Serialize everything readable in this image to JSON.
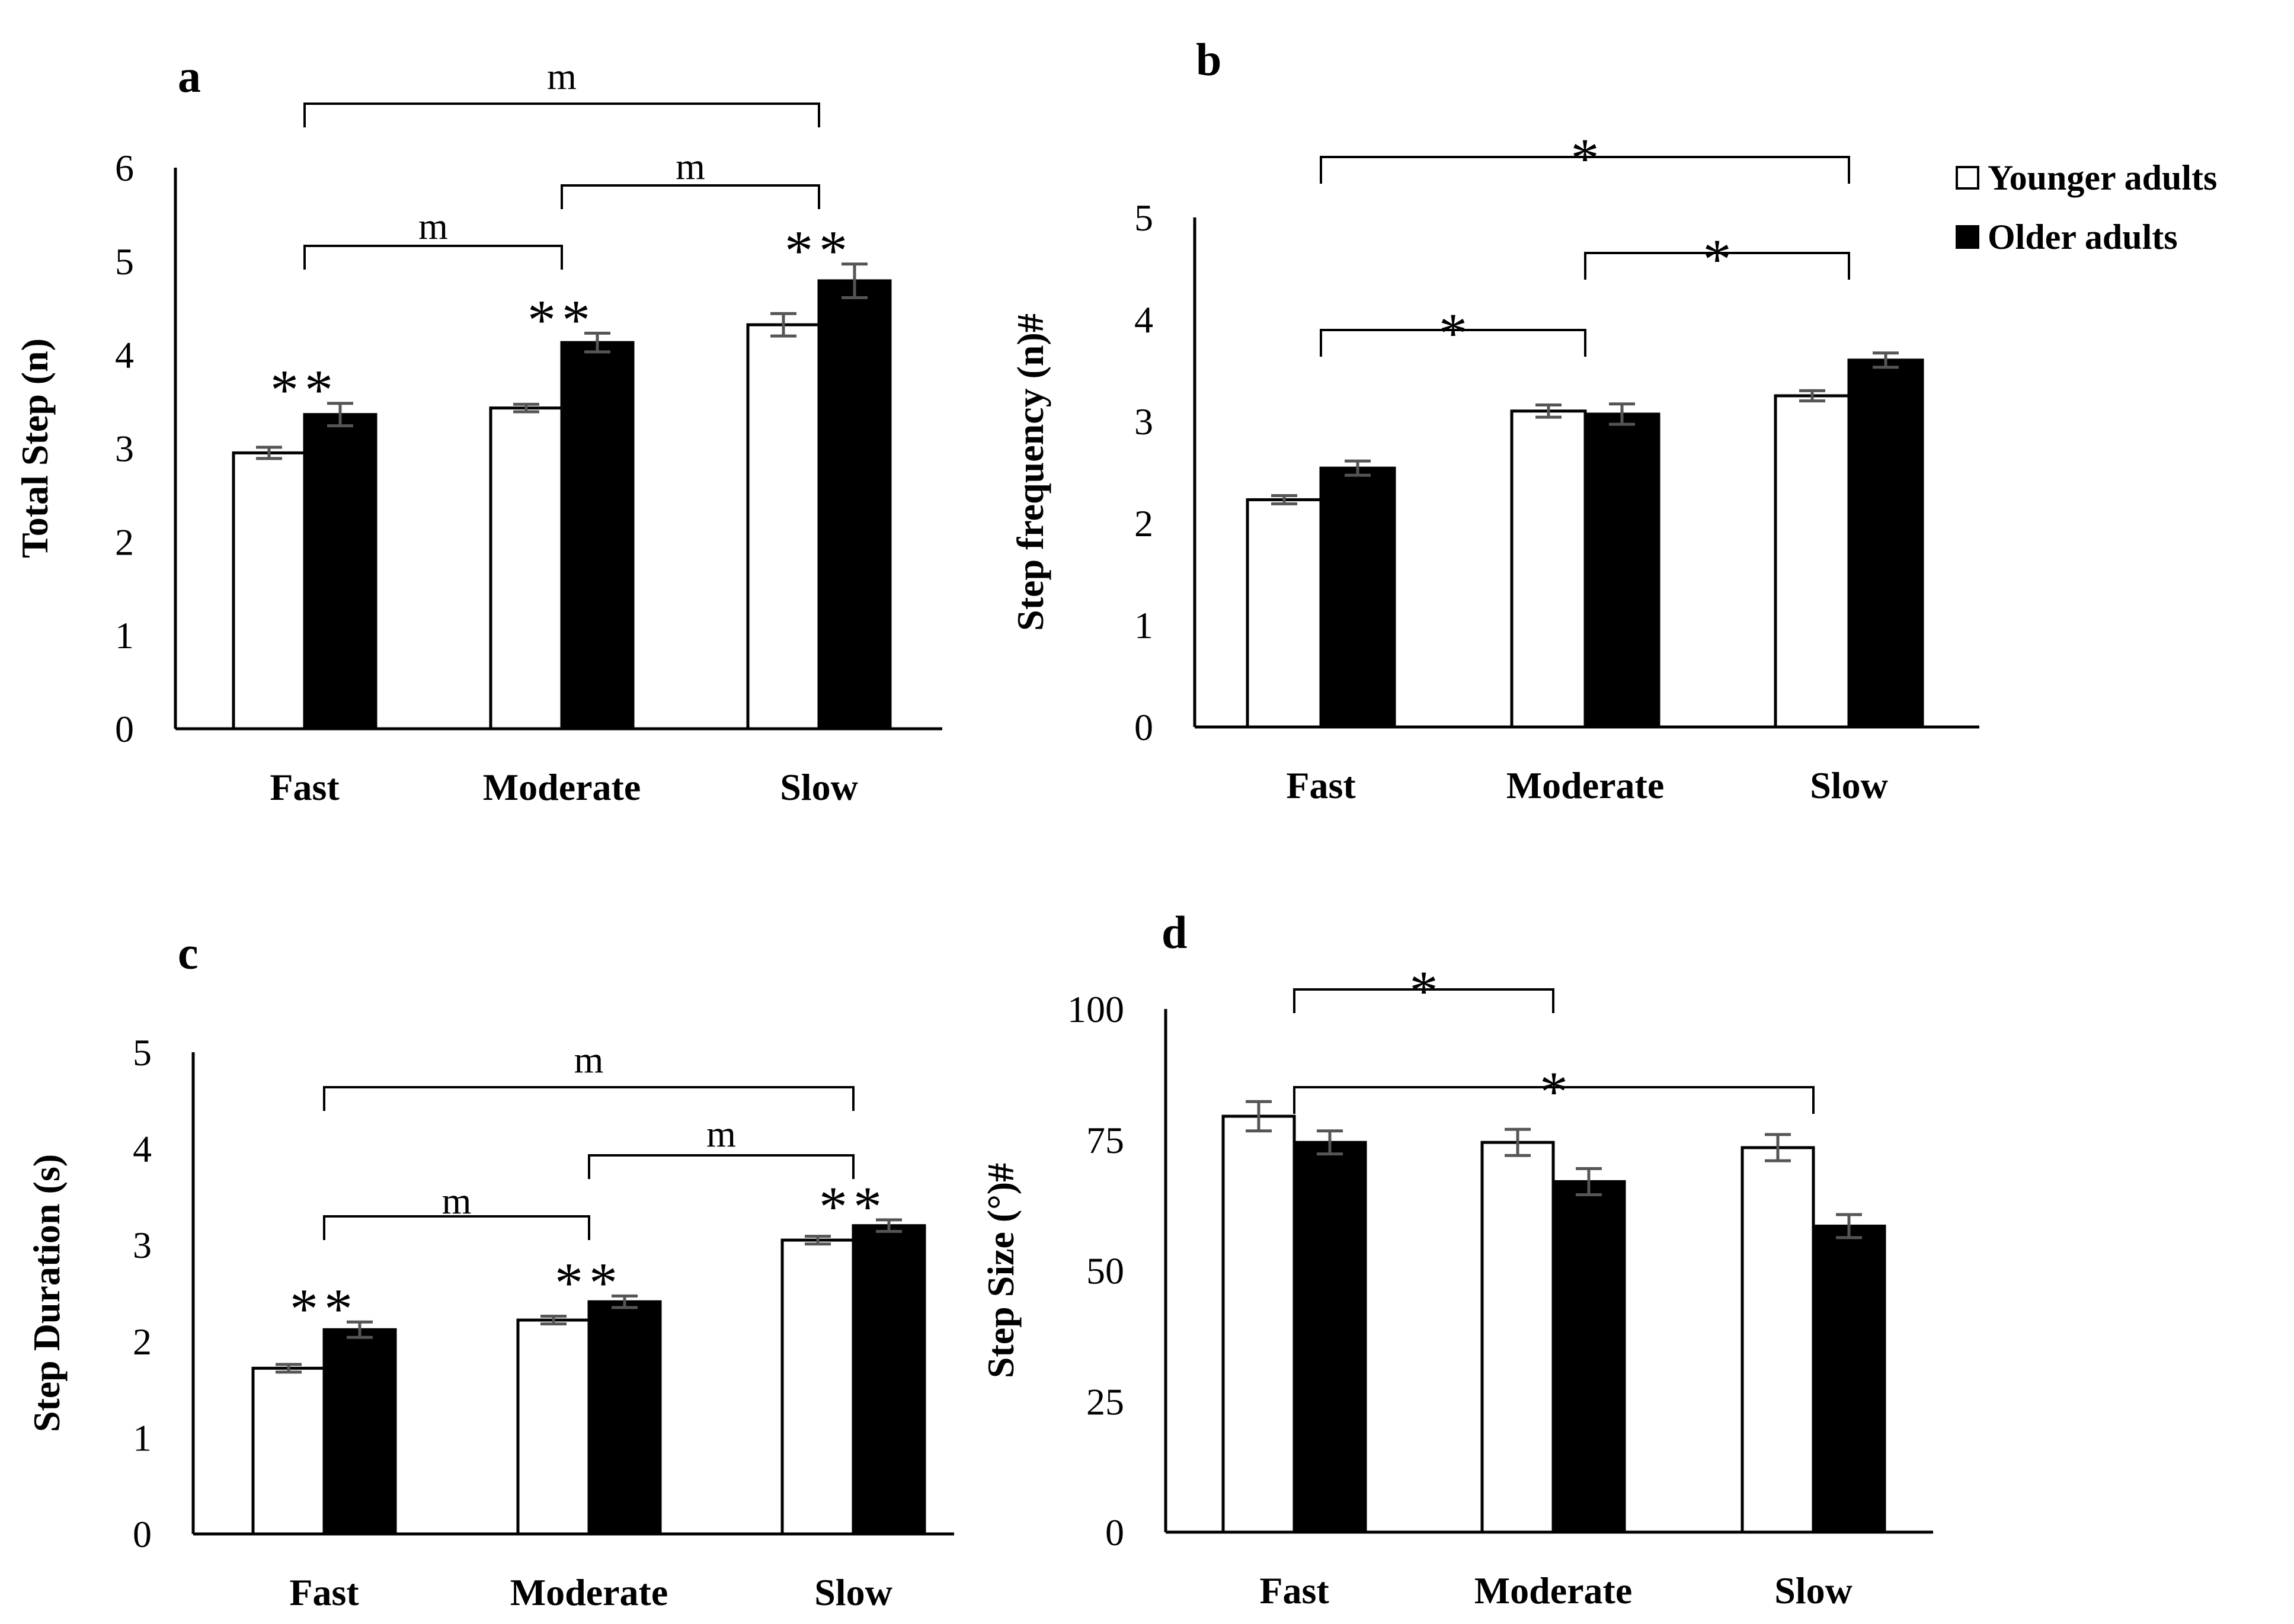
{
  "legend": {
    "younger": "Younger adults",
    "older": "Older adults"
  },
  "colors": {
    "younger": "#ffffff",
    "older": "#000000",
    "error": "#555555"
  },
  "chart_data": [
    {
      "type": "bar",
      "panel": "a",
      "ylabel": "Total Step (n)",
      "ylim": [
        0,
        6
      ],
      "yticks": [
        "0",
        "1",
        "2",
        "3",
        "4",
        "5",
        "6"
      ],
      "categories": [
        "Fast",
        "Moderate",
        "Slow"
      ],
      "series": [
        {
          "name": "Younger adults",
          "values": [
            2.95,
            3.43,
            4.32
          ],
          "errors": [
            0.06,
            0.04,
            0.12
          ]
        },
        {
          "name": "Older adults",
          "values": [
            3.36,
            4.13,
            4.79
          ],
          "errors": [
            0.12,
            0.1,
            0.18
          ]
        }
      ],
      "group_marks": [
        "**",
        "**",
        "**"
      ],
      "comparisons": [
        {
          "from": 0,
          "to": 2,
          "label": "m"
        },
        {
          "from": 1,
          "to": 2,
          "label": "m"
        },
        {
          "from": 0,
          "to": 1,
          "label": "m"
        }
      ]
    },
    {
      "type": "bar",
      "panel": "b",
      "ylabel": "Step frequency (n)#",
      "ylim": [
        0,
        5
      ],
      "yticks": [
        "0",
        "1",
        "2",
        "3",
        "4",
        "5"
      ],
      "categories": [
        "Fast",
        "Moderate",
        "Slow"
      ],
      "series": [
        {
          "name": "Younger adults",
          "values": [
            2.23,
            3.1,
            3.25
          ],
          "errors": [
            0.04,
            0.06,
            0.05
          ]
        },
        {
          "name": "Older adults",
          "values": [
            2.54,
            3.07,
            3.6
          ],
          "errors": [
            0.07,
            0.1,
            0.07
          ]
        }
      ],
      "group_marks": [
        "",
        "",
        ""
      ],
      "comparisons": [
        {
          "from": 0,
          "to": 2,
          "label": "*"
        },
        {
          "from": 1,
          "to": 2,
          "label": "*"
        },
        {
          "from": 0,
          "to": 1,
          "label": "*"
        }
      ]
    },
    {
      "type": "bar",
      "panel": "c",
      "ylabel": "Step Duration (s)",
      "ylim": [
        0,
        5
      ],
      "yticks": [
        "0",
        "1",
        "2",
        "3",
        "4",
        "5"
      ],
      "categories": [
        "Fast",
        "Moderate",
        "Slow"
      ],
      "series": [
        {
          "name": "Younger adults",
          "values": [
            1.72,
            2.22,
            3.05
          ],
          "errors": [
            0.04,
            0.04,
            0.04
          ]
        },
        {
          "name": "Older adults",
          "values": [
            2.12,
            2.41,
            3.2
          ],
          "errors": [
            0.08,
            0.06,
            0.06
          ]
        }
      ],
      "group_marks": [
        "**",
        "**",
        "**"
      ],
      "comparisons": [
        {
          "from": 0,
          "to": 2,
          "label": "m"
        },
        {
          "from": 1,
          "to": 2,
          "label": "m"
        },
        {
          "from": 0,
          "to": 1,
          "label": "m"
        }
      ]
    },
    {
      "type": "bar",
      "panel": "d",
      "ylabel": "Step Size (°)#",
      "ylim": [
        0,
        100
      ],
      "yticks": [
        "0",
        "25",
        "50",
        "75",
        "100"
      ],
      "categories": [
        "Fast",
        "Moderate",
        "Slow"
      ],
      "series": [
        {
          "name": "Younger adults",
          "values": [
            79.5,
            74.5,
            73.5
          ],
          "errors": [
            2.8,
            2.5,
            2.5
          ]
        },
        {
          "name": "Older adults",
          "values": [
            74.5,
            67.0,
            58.5
          ],
          "errors": [
            2.2,
            2.5,
            2.2
          ]
        }
      ],
      "group_marks": [
        "",
        "",
        ""
      ],
      "comparisons": [
        {
          "from": 0,
          "to": 1,
          "label": "*"
        },
        {
          "from": 0,
          "to": 2,
          "label": "*"
        }
      ]
    }
  ]
}
